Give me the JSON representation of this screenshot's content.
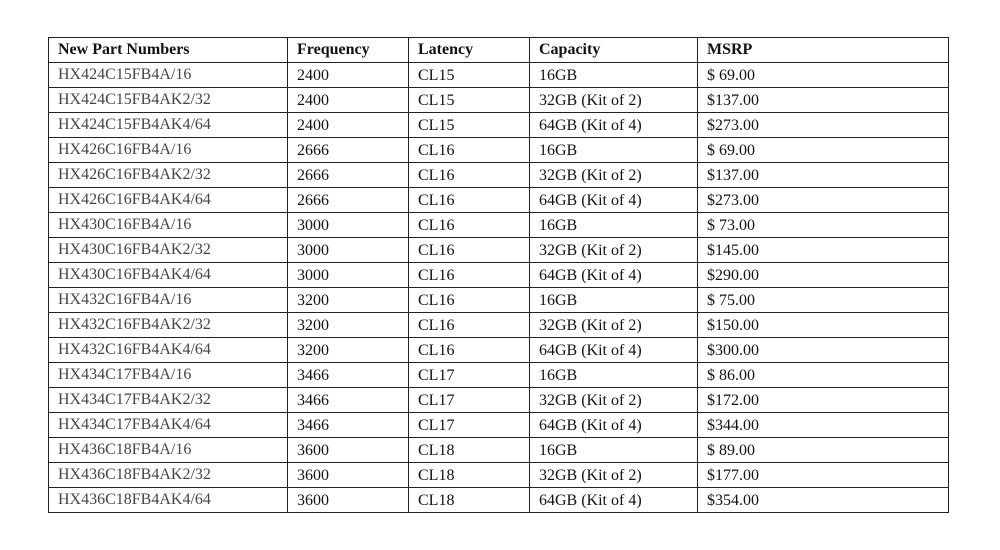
{
  "headers": [
    "New Part Numbers",
    "Frequency",
    "Latency",
    "Capacity",
    "MSRP"
  ],
  "rows": [
    [
      "HX424C15FB4A/16",
      "2400",
      "CL15",
      "16GB",
      "$ 69.00"
    ],
    [
      "HX424C15FB4AK2/32",
      "2400",
      "CL15",
      "32GB (Kit of 2)",
      "$137.00"
    ],
    [
      "HX424C15FB4AK4/64",
      "2400",
      "CL15",
      "64GB (Kit of 4)",
      "$273.00"
    ],
    [
      "HX426C16FB4A/16",
      "2666",
      "CL16",
      "16GB",
      "$ 69.00"
    ],
    [
      "HX426C16FB4AK2/32",
      "2666",
      "CL16",
      "32GB (Kit of 2)",
      "$137.00"
    ],
    [
      "HX426C16FB4AK4/64",
      "2666",
      "CL16",
      "64GB (Kit of 4)",
      "$273.00"
    ],
    [
      "HX430C16FB4A/16",
      "3000",
      "CL16",
      "16GB",
      "$ 73.00"
    ],
    [
      "HX430C16FB4AK2/32",
      "3000",
      "CL16",
      "32GB (Kit of 2)",
      "$145.00"
    ],
    [
      "HX430C16FB4AK4/64",
      "3000",
      "CL16",
      "64GB (Kit of 4)",
      "$290.00"
    ],
    [
      "HX432C16FB4A/16",
      "3200",
      "CL16",
      "16GB",
      "$ 75.00"
    ],
    [
      "HX432C16FB4AK2/32",
      "3200",
      "CL16",
      "32GB (Kit of 2)",
      "$150.00"
    ],
    [
      "HX432C16FB4AK4/64",
      "3200",
      "CL16",
      "64GB (Kit of 4)",
      "$300.00"
    ],
    [
      "HX434C17FB4A/16",
      "3466",
      "CL17",
      "16GB",
      "$ 86.00"
    ],
    [
      "HX434C17FB4AK2/32",
      "3466",
      "CL17",
      "32GB (Kit of 2)",
      "$172.00"
    ],
    [
      "HX434C17FB4AK4/64",
      "3466",
      "CL17",
      "64GB (Kit of 4)",
      "$344.00"
    ],
    [
      "HX436C18FB4A/16",
      "3600",
      "CL18",
      "16GB",
      "$ 89.00"
    ],
    [
      "HX436C18FB4AK2/32",
      "3600",
      "CL18",
      "32GB (Kit of 2)",
      "$177.00"
    ],
    [
      "HX436C18FB4AK4/64",
      "3600",
      "CL18",
      "64GB (Kit of 4)",
      "$354.00"
    ]
  ]
}
